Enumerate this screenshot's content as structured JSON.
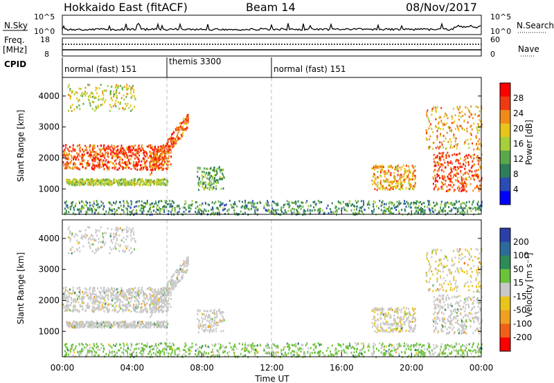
{
  "header": {
    "title": "Hokkaido East (fitACF)",
    "beam": "Beam 14",
    "date": "08/Nov/2017"
  },
  "sky_panel": {
    "label": "N.Sky",
    "left_ticks": [
      "10^5",
      "10^0"
    ],
    "right_ticks": [
      "10^5",
      "10^0"
    ],
    "right_label": "N.Search"
  },
  "freq_panel": {
    "label_line1": "Freq.",
    "label_line2": "[MHz]",
    "left_ticks": [
      "18",
      "8"
    ],
    "right_ticks": [
      "60",
      "0"
    ],
    "right_label": "Nave"
  },
  "cpid": {
    "label": "CPID",
    "segments": [
      {
        "name": "normal (fast) 151",
        "start_hour": 0,
        "end_hour": 6
      },
      {
        "name": "themis 3300",
        "start_hour": 6,
        "end_hour": 12
      },
      {
        "name": "normal (fast) 151",
        "start_hour": 12,
        "end_hour": 24
      }
    ]
  },
  "power_panel": {
    "ylabel": "Slant Range [km]",
    "yticks": [
      "1000",
      "2000",
      "3000",
      "4000"
    ],
    "colorbar_label": "Power [dB]",
    "colorbar_ticks": [
      "28",
      "24",
      "20",
      "16",
      "12",
      "8",
      "4"
    ]
  },
  "velocity_panel": {
    "ylabel": "Slant Range [km]",
    "yticks": [
      "1000",
      "2000",
      "3000",
      "4000"
    ],
    "colorbar_label": "Velocity [m s⁻¹]",
    "colorbar_ticks": [
      "200",
      "100",
      "50",
      "15",
      "-15",
      "-50",
      "-100",
      "-200"
    ]
  },
  "x_axis": {
    "label": "Time UT",
    "ticks": [
      "00:00",
      "04:00",
      "08:00",
      "12:00",
      "16:00",
      "20:00",
      "00:00"
    ]
  },
  "chart_data": {
    "type": "heatmap",
    "title": "Hokkaido East (fitACF)",
    "xlabel": "Time UT",
    "ylabel": "Slant Range [km]",
    "xlim_hours": [
      0,
      24
    ],
    "ylim_km": [
      180,
      4600
    ],
    "power_colors": [
      "#0000ff",
      "#2b4bb5",
      "#2e7d5b",
      "#5aa84a",
      "#a6cf3a",
      "#e8c51c",
      "#f08a18",
      "#f03a12",
      "#ff0000"
    ],
    "power_scale_db": [
      0,
      32
    ],
    "velocity_colors": [
      "#2c3fa8",
      "#2d6b9a",
      "#2e8b57",
      "#6cc33a",
      "#c8c8c8",
      "#e8c51c",
      "#f0a020",
      "#f06018",
      "#ff0000"
    ],
    "velocity_scale_ms": [
      -250,
      250
    ],
    "scatter_regions": [
      {
        "name": "early far",
        "t": [
          0.3,
          4.2
        ],
        "r": [
          3550,
          4400
        ],
        "power_db": 18,
        "velocity_ms": 0,
        "density": 0.35
      },
      {
        "name": "early main band",
        "t": [
          0,
          6.2
        ],
        "r": [
          1650,
          2450
        ],
        "power_db": 27,
        "velocity_ms": 0,
        "density": 0.9
      },
      {
        "name": "rising arc",
        "t": [
          5.0,
          7.2
        ],
        "r": [
          1700,
          3250
        ],
        "power_db": 26,
        "velocity_ms": 0,
        "density": 0.8
      },
      {
        "name": "early lower band",
        "t": [
          0.2,
          6.0
        ],
        "r": [
          1150,
          1350
        ],
        "power_db": 16,
        "velocity_ms": 0,
        "density": 0.55
      },
      {
        "name": "morning patch",
        "t": [
          7.7,
          9.3
        ],
        "r": [
          1000,
          1750
        ],
        "power_db": 13,
        "velocity_ms": 0,
        "density": 0.6
      },
      {
        "name": "midday patch",
        "t": [
          17.7,
          20.2
        ],
        "r": [
          1000,
          1800
        ],
        "power_db": 22,
        "velocity_ms": -20,
        "density": 0.75
      },
      {
        "name": "evening band",
        "t": [
          21.2,
          24
        ],
        "r": [
          950,
          2200
        ],
        "power_db": 27,
        "velocity_ms": 0,
        "density": 0.85
      },
      {
        "name": "evening far",
        "t": [
          20.8,
          24
        ],
        "r": [
          2300,
          3700
        ],
        "power_db": 22,
        "velocity_ms": -30,
        "density": 0.5
      },
      {
        "name": "near range",
        "t": [
          0,
          24
        ],
        "r": [
          200,
          650
        ],
        "power_db": 10,
        "velocity_ms": 40,
        "density": 0.3
      }
    ]
  }
}
